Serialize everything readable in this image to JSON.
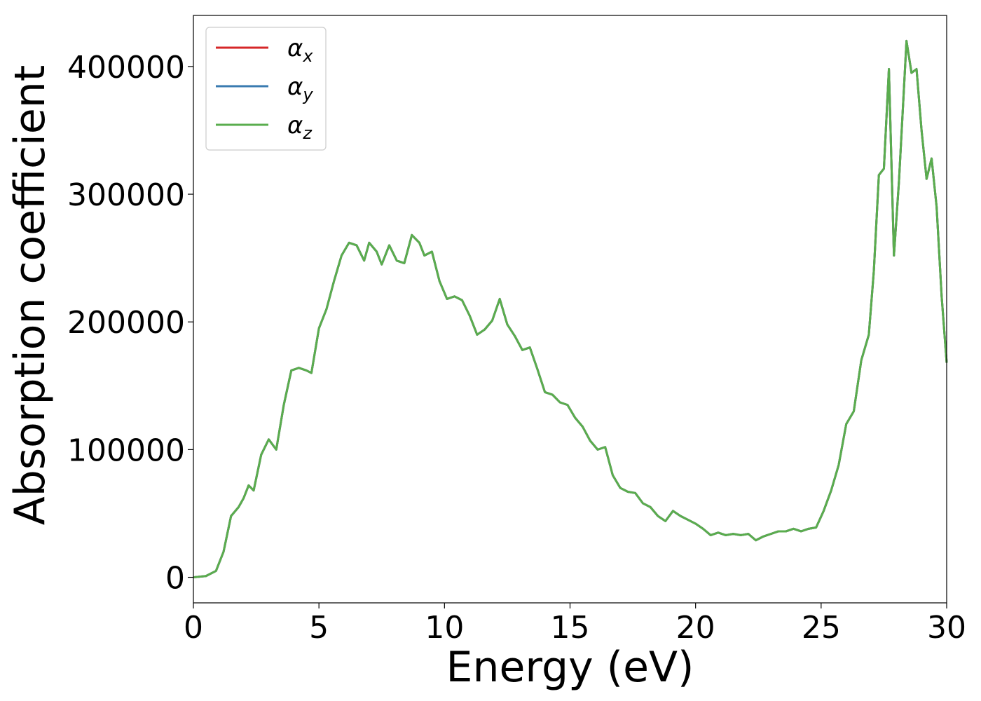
{
  "chart_data": {
    "type": "line",
    "title": "",
    "xlabel": "Energy (eV)",
    "ylabel": "Absorption coefficient",
    "xlim": [
      0,
      30
    ],
    "ylim": [
      -20000,
      440000
    ],
    "x_ticks": [
      0,
      5,
      10,
      15,
      20,
      25,
      30
    ],
    "x_tick_labels": [
      "0",
      "5",
      "10",
      "15",
      "20",
      "25",
      "30"
    ],
    "y_ticks": [
      0,
      100000,
      200000,
      300000,
      400000
    ],
    "y_tick_labels": [
      "0",
      "100000",
      "200000",
      "300000",
      "400000"
    ],
    "grid": false,
    "legend_position": "top-left",
    "series": [
      {
        "name": "α_x",
        "legend_symbol": "α",
        "legend_subscript": "x",
        "color": "#d62728",
        "x": [
          0,
          0.5,
          0.9,
          1.2,
          1.5,
          1.8,
          2.0,
          2.2,
          2.4,
          2.7,
          3.0,
          3.3,
          3.6,
          3.9,
          4.2,
          4.5,
          4.7,
          5.0,
          5.3,
          5.6,
          5.9,
          6.2,
          6.5,
          6.8,
          7.0,
          7.3,
          7.5,
          7.8,
          8.1,
          8.4,
          8.7,
          9.0,
          9.2,
          9.5,
          9.8,
          10.1,
          10.4,
          10.7,
          11.0,
          11.3,
          11.6,
          11.9,
          12.2,
          12.5,
          12.8,
          13.1,
          13.4,
          13.7,
          14.0,
          14.3,
          14.6,
          14.9,
          15.2,
          15.5,
          15.8,
          16.1,
          16.4,
          16.7,
          17.0,
          17.3,
          17.6,
          17.9,
          18.2,
          18.5,
          18.8,
          19.1,
          19.4,
          19.7,
          20.0,
          20.3,
          20.6,
          20.9,
          21.2,
          21.5,
          21.8,
          22.1,
          22.4,
          22.7,
          23.0,
          23.3,
          23.6,
          23.9,
          24.2,
          24.5,
          24.8,
          25.1,
          25.4,
          25.7,
          26.0,
          26.3,
          26.6,
          26.9,
          27.1,
          27.3,
          27.5,
          27.7,
          27.9,
          28.1,
          28.4,
          28.6,
          28.8,
          29.0,
          29.2,
          29.4,
          29.6,
          29.8,
          30.0
        ],
        "y": [
          0,
          1000,
          5000,
          20000,
          48000,
          55000,
          62000,
          72000,
          68000,
          96000,
          108000,
          100000,
          135000,
          162000,
          164000,
          162000,
          160000,
          195000,
          210000,
          232000,
          252000,
          262000,
          260000,
          248000,
          262000,
          255000,
          245000,
          260000,
          248000,
          246000,
          268000,
          262000,
          252000,
          255000,
          232000,
          218000,
          220000,
          217000,
          205000,
          190000,
          194000,
          201000,
          218000,
          198000,
          189000,
          178000,
          180000,
          163000,
          145000,
          143000,
          137000,
          135000,
          125000,
          118000,
          107000,
          100000,
          102000,
          80000,
          70000,
          67000,
          66000,
          58000,
          55000,
          48000,
          44000,
          52000,
          48000,
          45000,
          42000,
          38000,
          33000,
          35000,
          33000,
          34000,
          33000,
          34000,
          29000,
          32000,
          34000,
          36000,
          36000,
          38000,
          36000,
          38000,
          39000,
          52000,
          68000,
          88000,
          120000,
          130000,
          170000,
          190000,
          240000,
          315000,
          320000,
          398000,
          252000,
          310000,
          420000,
          395000,
          398000,
          350000,
          312000,
          328000,
          290000,
          220000,
          168000
        ]
      },
      {
        "name": "α_y",
        "legend_symbol": "α",
        "legend_subscript": "y",
        "color": "#3a7bb0",
        "same_as": "α_x"
      },
      {
        "name": "α_z",
        "legend_symbol": "α",
        "legend_subscript": "z",
        "color": "#5aad4e",
        "same_as": "α_x"
      }
    ]
  }
}
